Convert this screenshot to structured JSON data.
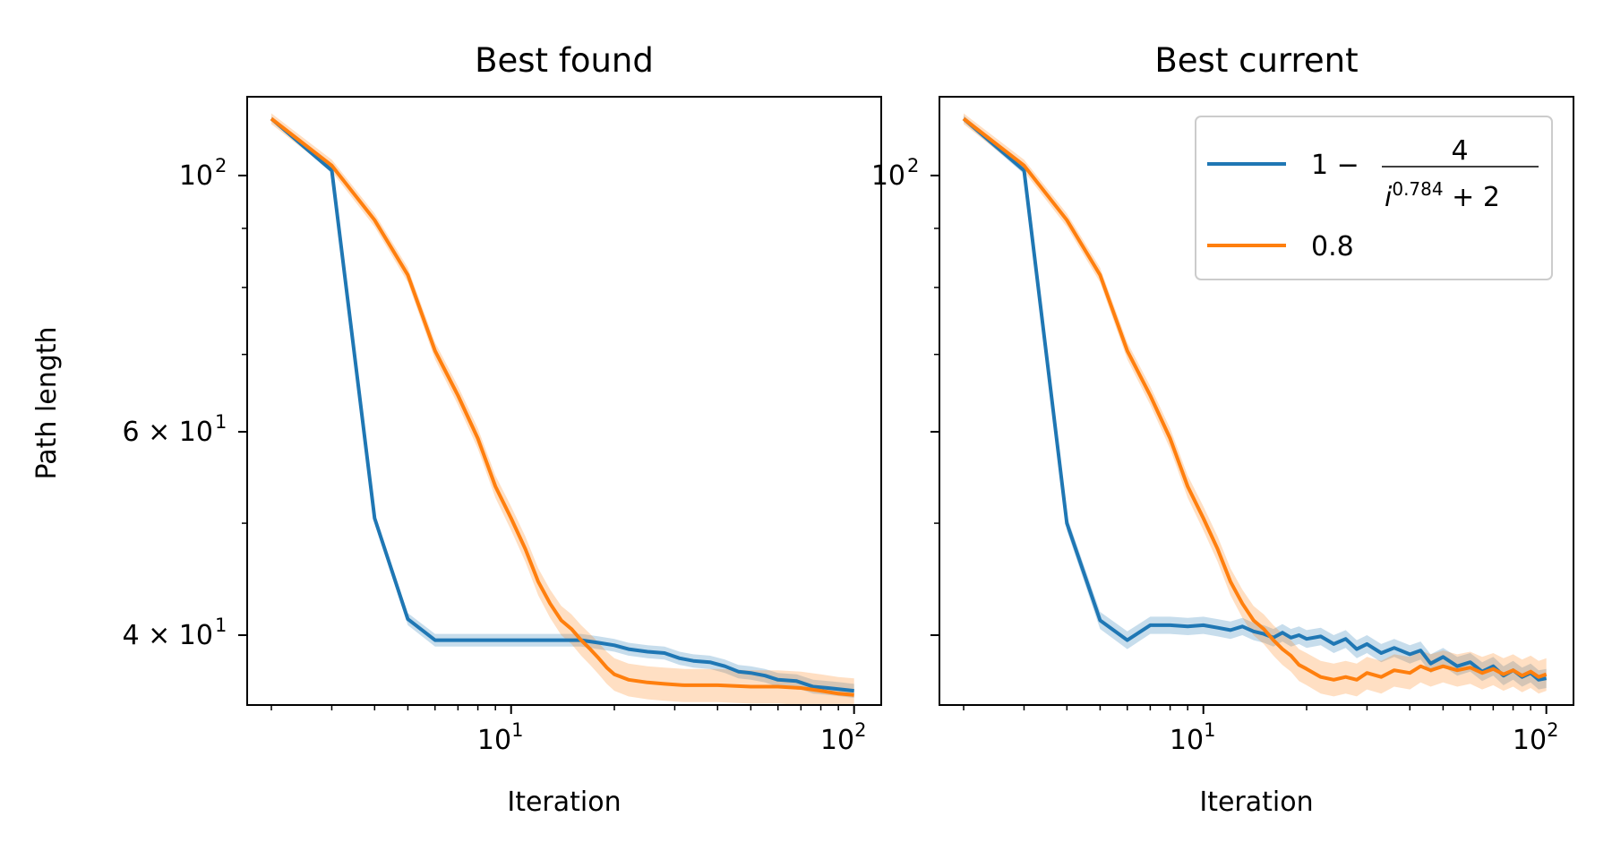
{
  "figure": {
    "ylabel": "Path length"
  },
  "legend": {
    "placement": "top-right",
    "entries": [
      {
        "label_prefix": "1 − ",
        "numerator": "4",
        "denominator_base": "i",
        "denominator_exp": "0.784",
        "denominator_tail": " + 2",
        "color": "#1f77b4"
      },
      {
        "label": "0.8",
        "color": "#ff7f0e"
      }
    ]
  },
  "colors": {
    "series1": "#1f77b4",
    "series2": "#ff7f0e"
  },
  "chart_data": [
    {
      "type": "line",
      "title": "Best found",
      "xlabel": "Iteration",
      "ylabel": "Path length",
      "xscale": "log",
      "yscale": "log",
      "xlim": [
        1.7,
        120
      ],
      "ylim": [
        34.8,
        117
      ],
      "x_ticks": [
        {
          "value": 10,
          "base": "10",
          "exp": "1"
        },
        {
          "value": 100,
          "base": "10",
          "exp": "2"
        }
      ],
      "y_ticks": [
        {
          "value": 100,
          "mant": "",
          "base": "10",
          "exp": "2"
        },
        {
          "value": 60,
          "mant": "6 × ",
          "base": "10",
          "exp": "1"
        },
        {
          "value": 40,
          "mant": "4 × ",
          "base": "10",
          "exp": "1"
        }
      ],
      "y_minor_ticks": [
        50,
        70,
        80,
        90
      ],
      "grid": false,
      "series": [
        {
          "name": "1 − 4/(i^0.784 + 2)",
          "color": "#1f77b4",
          "band": 0.5,
          "points": [
            [
              2,
              112
            ],
            [
              3,
              101
            ],
            [
              4,
              50.5
            ],
            [
              5,
              41.3
            ],
            [
              6,
              39.6
            ],
            [
              8,
              39.6
            ],
            [
              10,
              39.6
            ],
            [
              12,
              39.6
            ],
            [
              14,
              39.6
            ],
            [
              16,
              39.6
            ],
            [
              18,
              39.4
            ],
            [
              20,
              39.2
            ],
            [
              22,
              38.9
            ],
            [
              25,
              38.7
            ],
            [
              28,
              38.6
            ],
            [
              31,
              38.2
            ],
            [
              34,
              38.0
            ],
            [
              38,
              37.9
            ],
            [
              42,
              37.6
            ],
            [
              46,
              37.2
            ],
            [
              50,
              37.1
            ],
            [
              55,
              36.9
            ],
            [
              60,
              36.6
            ],
            [
              68,
              36.5
            ],
            [
              76,
              36.1
            ],
            [
              84,
              36.0
            ],
            [
              92,
              35.9
            ],
            [
              100,
              35.8
            ]
          ]
        },
        {
          "name": "0.8",
          "color": "#ff7f0e",
          "band": 1.2,
          "points": [
            [
              2,
              112
            ],
            [
              3,
              102
            ],
            [
              4,
              91.5
            ],
            [
              5,
              82
            ],
            [
              6,
              70.5
            ],
            [
              7,
              64.5
            ],
            [
              8,
              59.2
            ],
            [
              9,
              53.8
            ],
            [
              10,
              50.5
            ],
            [
              11,
              47.5
            ],
            [
              12,
              44.5
            ],
            [
              13,
              42.6
            ],
            [
              14,
              41.2
            ],
            [
              15,
              40.5
            ],
            [
              16,
              39.6
            ],
            [
              17,
              38.9
            ],
            [
              18,
              38.2
            ],
            [
              19,
              37.5
            ],
            [
              20,
              37.0
            ],
            [
              22,
              36.6
            ],
            [
              25,
              36.4
            ],
            [
              28,
              36.3
            ],
            [
              32,
              36.2
            ],
            [
              40,
              36.2
            ],
            [
              50,
              36.1
            ],
            [
              60,
              36.1
            ],
            [
              70,
              36.0
            ],
            [
              80,
              35.8
            ],
            [
              90,
              35.6
            ],
            [
              100,
              35.5
            ]
          ]
        }
      ]
    },
    {
      "type": "line",
      "title": "Best current",
      "xlabel": "Iteration",
      "ylabel": "",
      "xscale": "log",
      "yscale": "log",
      "xlim": [
        1.7,
        120
      ],
      "ylim": [
        34.8,
        117
      ],
      "x_ticks": [
        {
          "value": 10,
          "base": "10",
          "exp": "1"
        },
        {
          "value": 100,
          "base": "10",
          "exp": "2"
        }
      ],
      "y_ticks": [
        {
          "value": 100,
          "mant": "",
          "base": "10",
          "exp": "2"
        },
        {
          "value": 60,
          "mant": "",
          "base": "",
          "exp": ""
        },
        {
          "value": 40,
          "mant": "",
          "base": "",
          "exp": ""
        }
      ],
      "y_minor_ticks": [
        50,
        70,
        80,
        90
      ],
      "grid": false,
      "series": [
        {
          "name": "1 − 4/(i^0.784 + 2)",
          "color": "#1f77b4",
          "band": 0.7,
          "points": [
            [
              2,
              112
            ],
            [
              3,
              101
            ],
            [
              4,
              50
            ],
            [
              5,
              41.2
            ],
            [
              6,
              39.6
            ],
            [
              7,
              40.8
            ],
            [
              8,
              40.8
            ],
            [
              9,
              40.7
            ],
            [
              10,
              40.8
            ],
            [
              11,
              40.6
            ],
            [
              12,
              40.4
            ],
            [
              13,
              40.7
            ],
            [
              14,
              40.3
            ],
            [
              15,
              40.1
            ],
            [
              16,
              39.8
            ],
            [
              17,
              40.2
            ],
            [
              18,
              39.8
            ],
            [
              19,
              40.0
            ],
            [
              20,
              39.7
            ],
            [
              22,
              39.9
            ],
            [
              24,
              39.3
            ],
            [
              26,
              39.7
            ],
            [
              28,
              38.9
            ],
            [
              30,
              39.3
            ],
            [
              33,
              38.6
            ],
            [
              36,
              39.0
            ],
            [
              40,
              38.5
            ],
            [
              43,
              38.8
            ],
            [
              46,
              37.8
            ],
            [
              50,
              38.3
            ],
            [
              55,
              37.6
            ],
            [
              60,
              37.9
            ],
            [
              65,
              37.2
            ],
            [
              70,
              37.6
            ],
            [
              75,
              36.9
            ],
            [
              80,
              37.3
            ],
            [
              85,
              36.8
            ],
            [
              90,
              37.1
            ],
            [
              95,
              36.6
            ],
            [
              100,
              36.7
            ]
          ]
        },
        {
          "name": "0.8",
          "color": "#ff7f0e",
          "band": 1.2,
          "points": [
            [
              2,
              112
            ],
            [
              3,
              102
            ],
            [
              4,
              91.5
            ],
            [
              5,
              82
            ],
            [
              6,
              70.5
            ],
            [
              7,
              64.5
            ],
            [
              8,
              59.2
            ],
            [
              9,
              53.8
            ],
            [
              10,
              50.5
            ],
            [
              11,
              47.5
            ],
            [
              12,
              44.5
            ],
            [
              13,
              42.6
            ],
            [
              14,
              41.2
            ],
            [
              15,
              40.5
            ],
            [
              16,
              39.6
            ],
            [
              17,
              38.9
            ],
            [
              18,
              38.4
            ],
            [
              19,
              37.7
            ],
            [
              20,
              37.4
            ],
            [
              22,
              36.8
            ],
            [
              24,
              36.6
            ],
            [
              26,
              36.8
            ],
            [
              28,
              36.6
            ],
            [
              30,
              37.1
            ],
            [
              33,
              36.8
            ],
            [
              36,
              37.3
            ],
            [
              40,
              37.1
            ],
            [
              43,
              37.6
            ],
            [
              46,
              37.3
            ],
            [
              50,
              37.6
            ],
            [
              55,
              37.3
            ],
            [
              60,
              37.5
            ],
            [
              65,
              37.1
            ],
            [
              70,
              37.4
            ],
            [
              75,
              37.0
            ],
            [
              80,
              37.3
            ],
            [
              85,
              36.9
            ],
            [
              90,
              37.2
            ],
            [
              95,
              36.8
            ],
            [
              100,
              37.0
            ]
          ]
        }
      ]
    }
  ]
}
